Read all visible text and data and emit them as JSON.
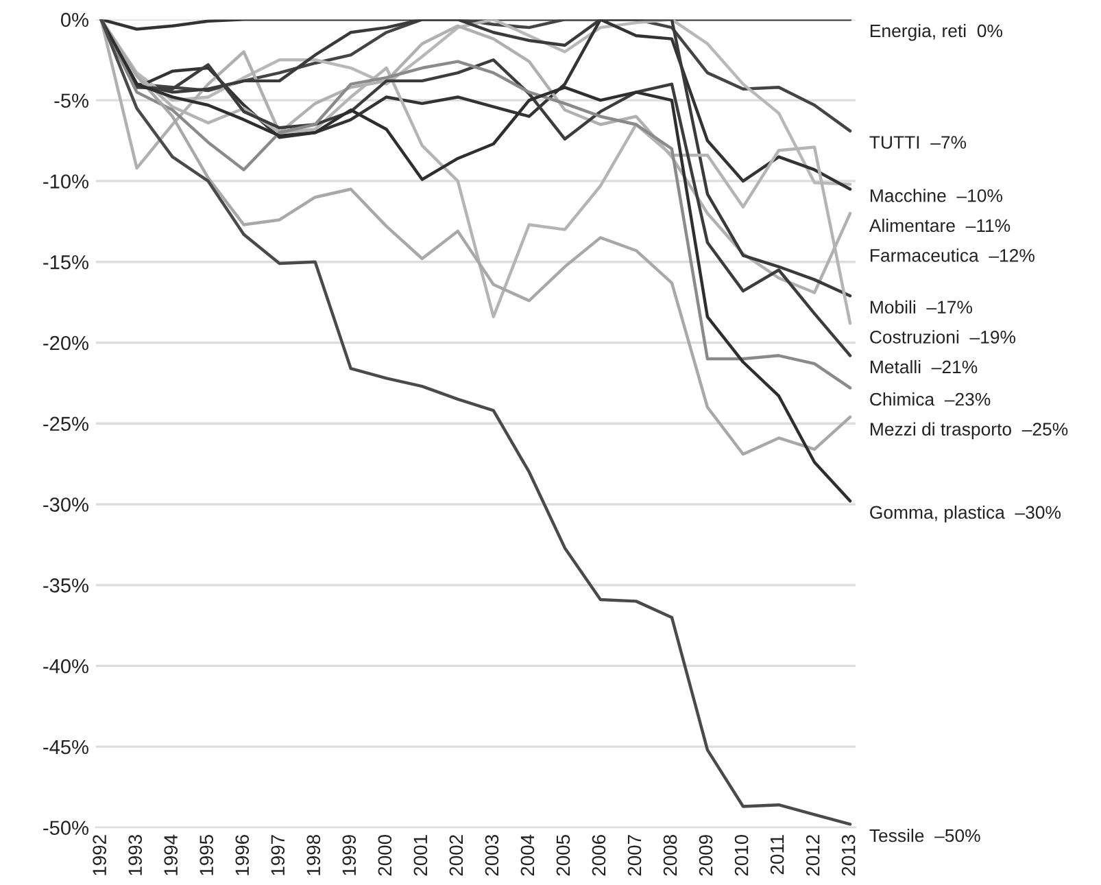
{
  "chart_data": {
    "type": "line",
    "categories": [
      "1992",
      "1993",
      "1994",
      "1995",
      "1996",
      "1997",
      "1998",
      "1999",
      "2000",
      "2001",
      "2002",
      "2003",
      "2004",
      "2005",
      "2006",
      "2007",
      "2008",
      "2009",
      "2010",
      "2011",
      "2012",
      "2013"
    ],
    "ylim": [
      -50,
      0
    ],
    "yticks": [
      {
        "value": 0,
        "label": "0%"
      },
      {
        "value": -5,
        "label": "-5%"
      },
      {
        "value": -10,
        "label": "-10%"
      },
      {
        "value": -15,
        "label": "-15%"
      },
      {
        "value": -20,
        "label": "-20%"
      },
      {
        "value": -25,
        "label": "-25%"
      },
      {
        "value": -30,
        "label": "-30%"
      },
      {
        "value": -35,
        "label": "-35%"
      },
      {
        "value": -40,
        "label": "-40%"
      },
      {
        "value": -45,
        "label": "-45%"
      },
      {
        "value": -50,
        "label": "-50%"
      }
    ],
    "grid": "y",
    "series": [
      {
        "name": "Energia, reti  0%",
        "color": "#333333",
        "values": [
          0,
          -0.6,
          -0.4,
          -0.1,
          0,
          0,
          0,
          0,
          0,
          0,
          0,
          0,
          0,
          0,
          0,
          0,
          0,
          0,
          0,
          0,
          0,
          0
        ]
      },
      {
        "name": "TUTTI  –7%",
        "color": "#444444",
        "values": [
          0,
          -4,
          -4.2,
          -4.4,
          -3.8,
          -3.3,
          -2.7,
          -2.2,
          -0.8,
          0,
          0,
          -0.3,
          -0.5,
          0,
          0,
          0,
          -0.5,
          -3.3,
          -4.3,
          -4.2,
          -5.3,
          -6.9
        ]
      },
      {
        "name": "Macchine  –10%",
        "color": "#b8b8b8",
        "values": [
          0,
          -3.3,
          -5,
          -4.8,
          -3.6,
          -2.5,
          -2.5,
          -3,
          -4,
          -2.3,
          -0.5,
          0,
          -1,
          -2,
          -0.5,
          -0.2,
          0,
          -1.5,
          -4,
          -5.8,
          -10.1,
          -10.2
        ]
      },
      {
        "name": "Alimentare  –11%",
        "color": "#333333",
        "values": [
          0,
          -4.2,
          -3.2,
          -3,
          -5.3,
          -7.3,
          -7,
          -6.2,
          -4.8,
          -5.2,
          -4.8,
          -5.4,
          -6,
          -4,
          0,
          -1,
          -1.2,
          -7.5,
          -10,
          -8.5,
          -9.3,
          -10.5
        ]
      },
      {
        "name": "Farmaceutica  –12%",
        "color": "#b0b0b0",
        "values": [
          0,
          -9.2,
          -6.5,
          -4,
          -2,
          -7,
          -5.2,
          -4.2,
          -3.8,
          -1.5,
          -0.4,
          -1.2,
          -2.6,
          -5.6,
          -6.5,
          -6,
          -8.5,
          -12,
          -14.5,
          -16,
          -16.9,
          -12
        ]
      },
      {
        "name": "Mobili  –17%",
        "color": "#3a3a3a",
        "values": [
          0,
          -4,
          -4.5,
          -4.3,
          -3.8,
          -3.8,
          -2.2,
          -0.8,
          -0.5,
          0,
          0,
          -0.8,
          -1.3,
          -1.6,
          0,
          0,
          0,
          -10.8,
          -14.6,
          -15.3,
          -16.1,
          -17.1
        ]
      },
      {
        "name": "Costruzioni  –19%",
        "color": "#b4b4b4",
        "values": [
          0,
          -3.4,
          -5.4,
          -6.4,
          -5.5,
          -7,
          -6.8,
          -4.8,
          -3,
          -7.8,
          -10,
          -18.4,
          -12.7,
          -13,
          -10.3,
          -6.5,
          -8.4,
          -8.4,
          -11.6,
          -8.1,
          -7.9,
          -18.8
        ]
      },
      {
        "name": "Metalli  –21%",
        "color": "#3c3c3c",
        "values": [
          0,
          -4.2,
          -4.3,
          -2.8,
          -5.7,
          -6.7,
          -6.5,
          -5.7,
          -3.8,
          -3.8,
          -3.3,
          -2.5,
          -4.6,
          -7.4,
          -5.7,
          -4.5,
          -4,
          -13.8,
          -16.8,
          -15.5,
          -18.2,
          -20.8
        ]
      },
      {
        "name": "Chimica  –23%",
        "color": "#8a8a8a",
        "values": [
          0,
          -4.5,
          -5.6,
          -7.6,
          -9.3,
          -7,
          -6.5,
          -4,
          -3.6,
          -3,
          -2.6,
          -3.3,
          -4.5,
          -5.2,
          -6,
          -6.5,
          -8,
          -21,
          -21,
          -20.8,
          -21.3,
          -22.8
        ]
      },
      {
        "name": "Mezzi di trasporto  –25%",
        "color": "#a8a8a8",
        "values": [
          0,
          -3.5,
          -6,
          -9.8,
          -12.7,
          -12.4,
          -11,
          -10.5,
          -12.8,
          -14.8,
          -13.1,
          -16.4,
          -17.4,
          -15.3,
          -13.5,
          -14.3,
          -16.3,
          -24,
          -26.9,
          -25.9,
          -26.6,
          -24.6
        ]
      },
      {
        "name": "Gomma, plastica  –30%",
        "color": "#2e2e2e",
        "values": [
          0,
          -4,
          -4.8,
          -5.3,
          -6.2,
          -7.2,
          -7,
          -5.6,
          -6.8,
          -9.9,
          -8.6,
          -7.7,
          -5,
          -4.2,
          -5,
          -4.5,
          -5,
          -18.4,
          -21.2,
          -23.3,
          -27.4,
          -29.8
        ]
      },
      {
        "name": "Tessile  –50%",
        "color": "#4a4a4a",
        "values": [
          0,
          -5.5,
          -8.5,
          -10,
          -13.3,
          -15.1,
          -15,
          -21.6,
          -22.2,
          -22.7,
          -23.5,
          -24.2,
          -28,
          -32.7,
          -35.9,
          -36,
          -37,
          -45.2,
          -48.7,
          -48.6,
          -49.2,
          -49.8
        ]
      }
    ]
  }
}
